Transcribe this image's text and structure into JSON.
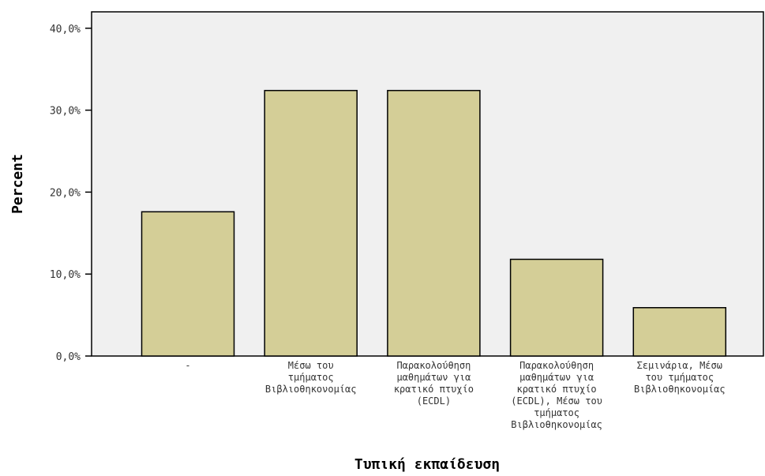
{
  "chart_data": {
    "type": "bar",
    "categories": [
      [
        "-"
      ],
      [
        "Μέσω του",
        "τμήματος",
        "Βιβλιοθηκονομίας"
      ],
      [
        "Παρακολούθηση",
        "μαθημάτων για",
        "κρατικό πτυχίο",
        "(ECDL)"
      ],
      [
        "Παρακολούθηση",
        "μαθημάτων για",
        "κρατικό πτυχίο",
        "(ECDL), Μέσω του",
        "τμήματος",
        "Βιβλιοθηκονομίας"
      ],
      [
        "Σεμινάρια, Μέσω",
        "του τμήματος",
        "Βιβλιοθηκονομίας"
      ]
    ],
    "values": [
      17.6,
      32.4,
      32.4,
      11.8,
      5.9
    ],
    "xlabel": "Τυπική εκπαίδευση",
    "ylabel": "Percent",
    "ylim": [
      0,
      42
    ],
    "yticks": [
      0,
      10,
      20,
      30,
      40
    ],
    "ytick_labels": [
      "0,0%",
      "10,0%",
      "20,0%",
      "30,0%",
      "40,0%"
    ],
    "grid": false,
    "colors": {
      "bar_fill": "#d4ce97",
      "bar_stroke": "#000000",
      "plot_background": "#f0f0f0"
    }
  }
}
